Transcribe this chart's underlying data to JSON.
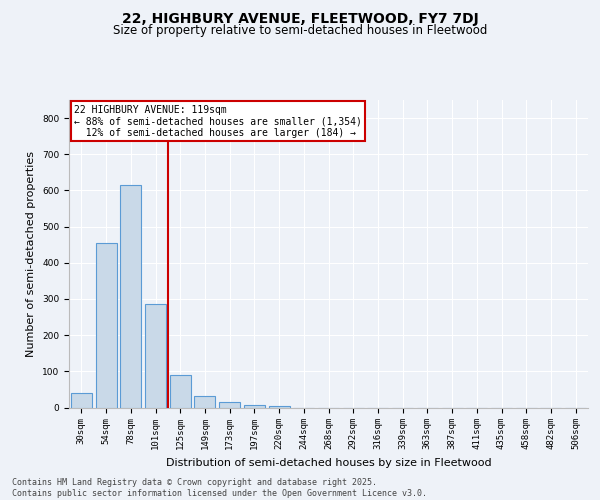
{
  "title1": "22, HIGHBURY AVENUE, FLEETWOOD, FY7 7DJ",
  "title2": "Size of property relative to semi-detached houses in Fleetwood",
  "xlabel": "Distribution of semi-detached houses by size in Fleetwood",
  "ylabel": "Number of semi-detached properties",
  "categories": [
    "30sqm",
    "54sqm",
    "78sqm",
    "101sqm",
    "125sqm",
    "149sqm",
    "173sqm",
    "197sqm",
    "220sqm",
    "244sqm",
    "268sqm",
    "292sqm",
    "316sqm",
    "339sqm",
    "363sqm",
    "387sqm",
    "411sqm",
    "435sqm",
    "458sqm",
    "482sqm",
    "506sqm"
  ],
  "values": [
    40,
    455,
    615,
    285,
    90,
    33,
    16,
    8,
    5,
    0,
    0,
    0,
    0,
    0,
    0,
    0,
    0,
    0,
    0,
    0,
    0
  ],
  "bar_color": "#c9d9e8",
  "bar_edge_color": "#5b9bd5",
  "vline_color": "#cc0000",
  "annotation_text": "22 HIGHBURY AVENUE: 119sqm\n← 88% of semi-detached houses are smaller (1,354)\n  12% of semi-detached houses are larger (184) →",
  "annotation_box_color": "#cc0000",
  "annotation_box_fill": "white",
  "ylim": [
    0,
    850
  ],
  "yticks": [
    0,
    100,
    200,
    300,
    400,
    500,
    600,
    700,
    800
  ],
  "footer": "Contains HM Land Registry data © Crown copyright and database right 2025.\nContains public sector information licensed under the Open Government Licence v3.0.",
  "bg_color": "#eef2f8",
  "grid_color": "#ffffff",
  "title1_fontsize": 10,
  "title2_fontsize": 8.5,
  "tick_fontsize": 6.5,
  "label_fontsize": 8,
  "footer_fontsize": 6,
  "annot_fontsize": 7
}
